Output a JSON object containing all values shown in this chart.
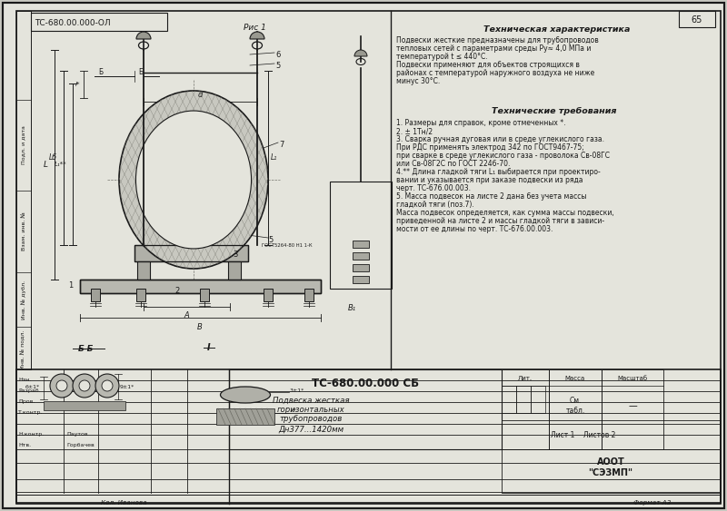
{
  "bg_color": "#c8c8c0",
  "paper_color": "#e4e4dc",
  "line_color": "#1a1a1a",
  "light_line": "#555555",
  "title_text": "ТС-680.00.000 СБ",
  "subtitle1": "Подвеска жесткая",
  "subtitle2": "горизонтальных",
  "subtitle3": "трубопроводов",
  "subtitle4": "Дн377...1420мм",
  "tech_title": "Техническая характеристика",
  "tech_text": [
    "Подвески жесткие предназначены для трубопроводов",
    "тепловых сетей с параметрами среды Ру≈ 4,0 МПа и",
    "температурой t ≤ 440°С.",
    "Подвески применяют для объектов строящихся в",
    "районах с температурой наружного воздуха не ниже",
    "минус 30°С."
  ],
  "req_title": "Технические требования",
  "req_text": [
    "1. Размеры для справок, кроме отмеченных *.",
    "2. ± 1Тн/2",
    "3. Сварка ручная дуговая или в среде углекислого газа.",
    "При РДС применять электрод 342 по ГОСТ9467-75;",
    "при сварке в среде углекислого газа - проволока Св-08ГС",
    "или Св-08Г2С по ГОСТ 2246-70.",
    "4.** Длина гладкой тяги L₁ выбирается при проектиро-",
    "вании и указывается при заказе подвески из ряда",
    "черт. ТС-676.00.003.",
    "5. Масса подвесок на листе 2 дана без учета массы",
    "гладкой тяги (поз.7).",
    "Масса подвесок определяется, как сумма массы подвески,",
    "приведенной на листе 2 и массы гладкой тяги в зависи-",
    "мости от ее длины по черт. ТС-676.00.003."
  ],
  "bottom_text": "Кол. Иванова",
  "format_text": "Формат А3",
  "fig_label": "ТС-680.00.000-ОЛ",
  "ris_label": "Рис 1",
  "sheet_info": "Лист 1    Листов 2",
  "org_name": "АООТ\n\"СЭЗМП\"",
  "mass_text": "См.\nтабл.",
  "border_color": "#1a1a1a"
}
